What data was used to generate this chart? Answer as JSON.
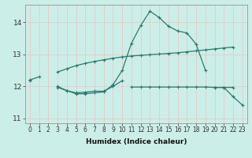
{
  "xlabel": "Humidex (Indice chaleur)",
  "x": [
    0,
    1,
    2,
    3,
    4,
    5,
    6,
    7,
    8,
    9,
    10,
    11,
    12,
    13,
    14,
    15,
    16,
    17,
    18,
    19,
    20,
    21,
    22,
    23
  ],
  "line_upper": [
    12.2,
    12.3,
    null,
    12.45,
    12.55,
    12.65,
    12.72,
    12.78,
    12.83,
    12.88,
    12.92,
    12.95,
    12.97,
    12.99,
    13.01,
    13.03,
    13.05,
    13.08,
    13.11,
    13.14,
    13.17,
    13.2,
    13.23,
    null
  ],
  "line_main": [
    null,
    null,
    null,
    12.0,
    11.87,
    11.77,
    11.77,
    11.8,
    11.83,
    12.05,
    12.5,
    13.35,
    13.9,
    14.35,
    14.15,
    13.88,
    13.73,
    13.67,
    13.32,
    12.5,
    null,
    null,
    null,
    null
  ],
  "line_flat": [
    12.18,
    null,
    null,
    11.97,
    11.87,
    11.8,
    11.82,
    11.85,
    11.85,
    12.0,
    12.18,
    null,
    null,
    null,
    null,
    null,
    null,
    null,
    null,
    null,
    11.97,
    11.97,
    11.68,
    11.42
  ],
  "line_lower": [
    null,
    null,
    null,
    null,
    null,
    null,
    null,
    null,
    null,
    null,
    null,
    11.98,
    11.98,
    11.98,
    11.98,
    11.98,
    11.98,
    11.98,
    11.98,
    11.98,
    11.97,
    11.97,
    11.97,
    null
  ],
  "ylim": [
    10.85,
    14.55
  ],
  "xlim": [
    -0.5,
    23.5
  ],
  "yticks": [
    11,
    12,
    13,
    14
  ],
  "xticks": [
    0,
    1,
    2,
    3,
    4,
    5,
    6,
    7,
    8,
    9,
    10,
    11,
    12,
    13,
    14,
    15,
    16,
    17,
    18,
    19,
    20,
    21,
    22,
    23
  ],
  "line_color": "#2a7a6e",
  "bg_color": "#cceee8",
  "grid_color": "#e8c8c8",
  "markersize": 3.5,
  "linewidth": 0.9
}
